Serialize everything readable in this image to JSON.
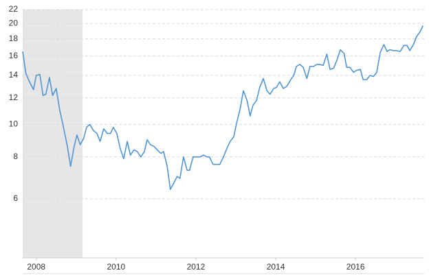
{
  "chart_data": {
    "type": "line",
    "log_y": true,
    "grid": true,
    "xlim": [
      2007.66,
      2017.72
    ],
    "xticks": [
      2008,
      2010,
      2012,
      2014,
      2016
    ],
    "ylim": [
      4,
      22
    ],
    "yticks": [
      6,
      8,
      10,
      12,
      14,
      16,
      18,
      20,
      22
    ],
    "shaded_x": [
      2007.66,
      2009.16
    ],
    "shade_color": "#e6e6e6",
    "series": [
      {
        "color": "#4f95d3",
        "x": [
          2007.66,
          2007.74,
          2007.83,
          2007.93,
          2008.0,
          2008.09,
          2008.17,
          2008.24,
          2008.33,
          2008.41,
          2008.5,
          2008.59,
          2008.66,
          2008.78,
          2008.86,
          2008.95,
          2009.02,
          2009.1,
          2009.19,
          2009.26,
          2009.34,
          2009.43,
          2009.52,
          2009.6,
          2009.69,
          2009.78,
          2009.86,
          2009.93,
          2010.02,
          2010.1,
          2010.19,
          2010.28,
          2010.36,
          2010.45,
          2010.53,
          2010.62,
          2010.71,
          2010.78,
          2010.86,
          2010.95,
          2011.03,
          2011.12,
          2011.19,
          2011.28,
          2011.36,
          2011.45,
          2011.53,
          2011.6,
          2011.69,
          2011.78,
          2011.84,
          2011.93,
          2012.02,
          2012.1,
          2012.19,
          2012.28,
          2012.34,
          2012.43,
          2012.52,
          2012.6,
          2012.69,
          2012.78,
          2012.86,
          2012.95,
          2013.02,
          2013.1,
          2013.19,
          2013.28,
          2013.36,
          2013.43,
          2013.52,
          2013.6,
          2013.69,
          2013.78,
          2013.86,
          2013.95,
          2014.02,
          2014.1,
          2014.19,
          2014.28,
          2014.36,
          2014.45,
          2014.52,
          2014.6,
          2014.69,
          2014.78,
          2014.86,
          2014.95,
          2015.03,
          2015.1,
          2015.19,
          2015.28,
          2015.36,
          2015.45,
          2015.53,
          2015.62,
          2015.71,
          2015.78,
          2015.86,
          2015.95,
          2016.03,
          2016.12,
          2016.19,
          2016.28,
          2016.36,
          2016.45,
          2016.53,
          2016.62,
          2016.71,
          2016.79,
          2016.86,
          2016.95,
          2017.03,
          2017.12,
          2017.21,
          2017.29,
          2017.36,
          2017.45,
          2017.53,
          2017.62,
          2017.69
        ],
        "values": [
          16.5,
          14.2,
          13.4,
          12.7,
          14.0,
          14.1,
          12.2,
          12.3,
          13.8,
          12.2,
          12.8,
          11.0,
          10.1,
          8.6,
          7.5,
          8.6,
          9.3,
          8.7,
          9.1,
          9.8,
          10.0,
          9.6,
          9.4,
          8.9,
          9.7,
          9.4,
          9.4,
          9.8,
          9.4,
          8.5,
          7.9,
          8.9,
          8.1,
          8.4,
          8.3,
          8.0,
          8.3,
          9.0,
          8.7,
          8.6,
          8.4,
          8.2,
          8.3,
          7.5,
          6.4,
          6.7,
          7.0,
          6.9,
          8.0,
          7.3,
          7.3,
          8.0,
          8.0,
          8.0,
          8.1,
          8.0,
          8.0,
          7.6,
          7.6,
          7.6,
          8.0,
          8.5,
          8.9,
          9.2,
          10.1,
          11.0,
          12.6,
          11.8,
          10.6,
          11.4,
          11.8,
          12.9,
          13.7,
          12.6,
          12.3,
          12.8,
          12.9,
          13.4,
          12.8,
          13.0,
          13.5,
          14.0,
          14.9,
          15.1,
          14.8,
          13.7,
          14.9,
          14.9,
          15.1,
          15.1,
          15.0,
          16.2,
          14.6,
          14.7,
          15.5,
          16.7,
          16.3,
          14.8,
          14.8,
          14.3,
          14.5,
          14.6,
          13.6,
          13.6,
          14.0,
          13.9,
          14.3,
          16.4,
          17.3,
          16.5,
          16.7,
          16.6,
          16.6,
          16.5,
          17.2,
          17.2,
          16.6,
          17.3,
          18.3,
          18.9,
          19.7
        ]
      }
    ]
  }
}
